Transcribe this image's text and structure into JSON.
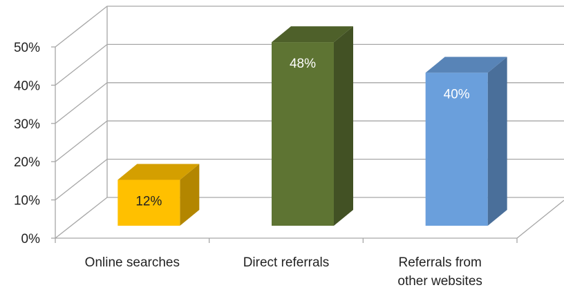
{
  "chart_data": {
    "type": "bar3d",
    "categories": [
      "Online searches",
      "Direct referrals",
      "Referrals from other websites"
    ],
    "values": [
      12,
      48,
      40
    ],
    "value_labels": [
      "12%",
      "48%",
      "40%"
    ],
    "colors": [
      "#ffc000",
      "#5e7433",
      "#6a9fdc"
    ],
    "ylim": [
      0,
      50
    ],
    "yticks": [
      {
        "value": 0,
        "label": "0%"
      },
      {
        "value": 10,
        "label": "10%"
      },
      {
        "value": 20,
        "label": "20%"
      },
      {
        "value": 30,
        "label": "30%"
      },
      {
        "value": 40,
        "label": "40%"
      },
      {
        "value": 50,
        "label": "50%"
      }
    ],
    "grid": true
  }
}
